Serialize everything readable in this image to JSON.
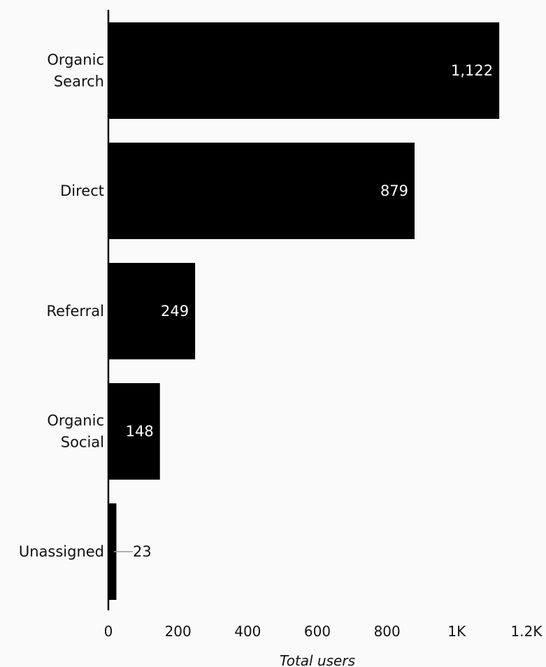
{
  "chart_data": {
    "type": "bar",
    "orientation": "horizontal",
    "categories": [
      [
        "Organic",
        "Search"
      ],
      [
        "Direct"
      ],
      [
        "Referral"
      ],
      [
        "Organic",
        "Social"
      ],
      [
        "Unassigned"
      ]
    ],
    "values": [
      1122,
      879,
      249,
      148,
      23
    ],
    "value_labels": [
      "1,122",
      "879",
      "249",
      "148",
      "23"
    ],
    "xlabel": "Total users",
    "xlim": [
      0,
      1200
    ],
    "xticks": [
      0,
      200,
      400,
      600,
      800,
      1000,
      1200
    ],
    "xtick_labels": [
      "0",
      "200",
      "400",
      "600",
      "800",
      "1K",
      "1.2K"
    ],
    "grid": false,
    "colors": {
      "bar": "#000000",
      "inside_label": "#ffffff",
      "outside_label": "#111111",
      "leader_line": "#9a9a9a",
      "background": "#fafafa"
    }
  }
}
